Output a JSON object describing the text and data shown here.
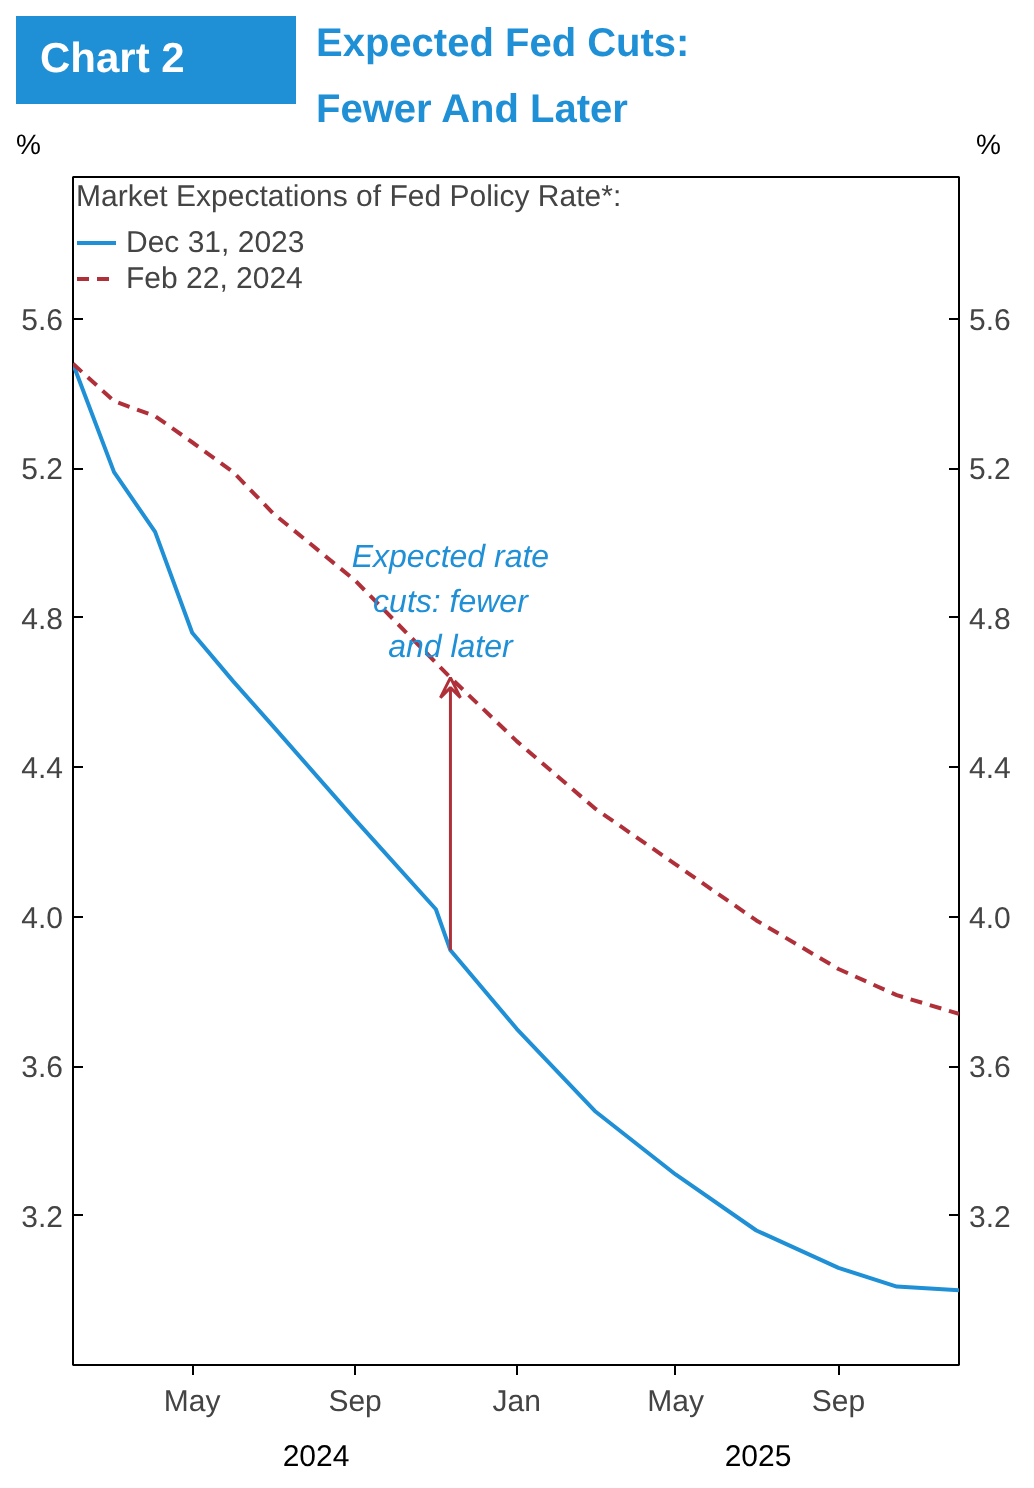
{
  "chart_data": {
    "type": "line",
    "title": "Expected Fed Cuts: Fewer And Later",
    "legend_title": "Market Expectations of Fed Policy Rate*:",
    "ylabel": "%",
    "y2label": "%",
    "x": [
      "2024-02-01",
      "2024-03-03",
      "2024-04-03",
      "2024-05-01",
      "2024-06-01",
      "2024-07-01",
      "2024-09-01",
      "2024-11-01",
      "2024-11-12",
      "2025-01-01",
      "2025-03-01",
      "2025-05-01",
      "2025-07-01",
      "2025-09-01",
      "2025-10-15",
      "2025-12-01"
    ],
    "series": [
      {
        "name": "Dec 31, 2023",
        "color": "#1f8fd6",
        "line_style": "solid",
        "values": [
          5.48,
          5.19,
          5.03,
          4.76,
          4.63,
          4.51,
          4.26,
          4.02,
          3.91,
          3.7,
          3.48,
          3.31,
          3.16,
          3.06,
          3.01,
          3.0
        ]
      },
      {
        "name": "Feb 22, 2024",
        "color": "#b0303a",
        "line_style": "dashed",
        "values": [
          5.48,
          5.38,
          5.34,
          5.27,
          5.19,
          5.08,
          4.9,
          4.68,
          4.64,
          4.47,
          4.29,
          4.14,
          3.99,
          3.86,
          3.79,
          3.74
        ]
      }
    ],
    "xlim": [
      "2024-02-01",
      "2025-12-01"
    ],
    "xticks": [
      {
        "value": "2024-05-01",
        "label": "May"
      },
      {
        "value": "2024-09-01",
        "label": "Sep"
      },
      {
        "value": "2025-01-01",
        "label": "Jan"
      },
      {
        "value": "2025-05-01",
        "label": "May"
      },
      {
        "value": "2025-09-01",
        "label": "Sep"
      }
    ],
    "ylim": [
      2.8,
      5.98
    ],
    "yticks": [
      3.2,
      3.6,
      {
        "value": 4,
        "label": "4.0"
      },
      4.4,
      4.8,
      5.2,
      5.6
    ],
    "y2lim": [
      2.8,
      5.98
    ],
    "y2ticks": [
      3.2,
      3.6,
      {
        "value": 4,
        "label": "4.0"
      },
      4.4,
      4.8,
      5.2,
      5.6
    ],
    "grid": false,
    "legend": "top left",
    "marker": "none",
    "annotations": [
      "Chart 2",
      {
        "text": "Expected rate cuts: fewer and later",
        "x": "2024-11-12",
        "y": 4.64
      },
      "2024",
      "2025"
    ]
  }
}
